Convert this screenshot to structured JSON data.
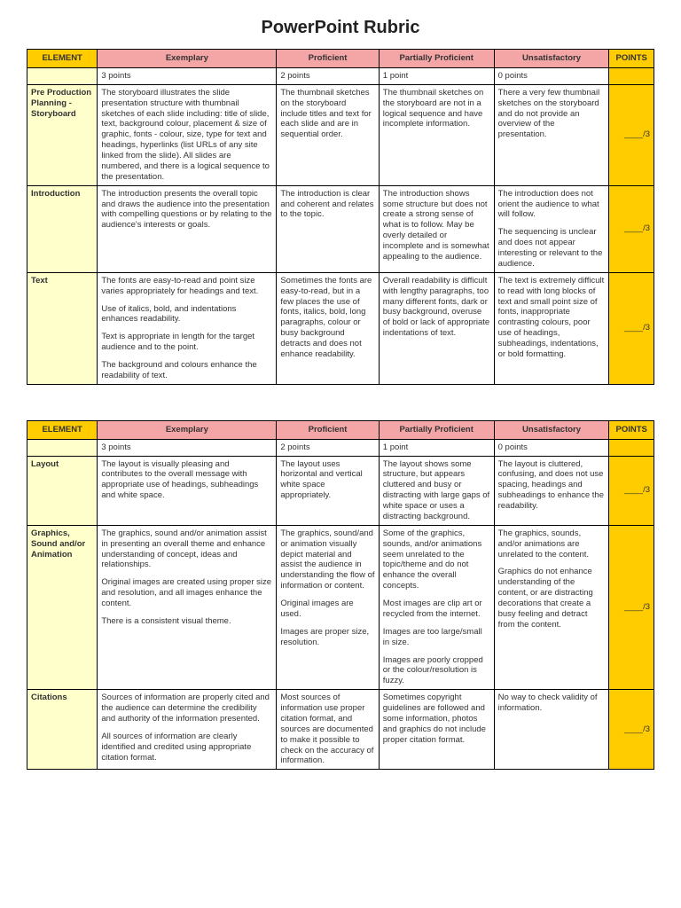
{
  "title": "PowerPoint Rubric",
  "headers": {
    "element": "ELEMENT",
    "exemplary": "Exemplary",
    "proficient": "Proficient",
    "partial": "Partially Proficient",
    "unsat": "Unsatisfactory",
    "points": "POINTS"
  },
  "pointsRow": {
    "p3": "3 points",
    "p2": "2 points",
    "p1": "1 point",
    "p0": "0 points"
  },
  "colors": {
    "headerYellow": "#ffcc00",
    "headerPink": "#f4a6a6",
    "elementBg": "#ffffcc",
    "border": "#000000"
  },
  "table1": [
    {
      "element": "Pre Production Planning - Storyboard",
      "exemplary": [
        "The storyboard illustrates the slide presentation structure with thumbnail sketches of each slide including: title of slide, text, background colour, placement & size of graphic, fonts - colour, size, type for text and headings, hyperlinks (list URLs of any site linked from the slide). All slides are numbered, and there is a logical sequence to the presentation."
      ],
      "proficient": [
        "The thumbnail sketches on the storyboard include titles and text for each slide and are in sequential order."
      ],
      "partial": [
        "The thumbnail sketches on the storyboard are not in a logical sequence and have incomplete information."
      ],
      "unsat": [
        "There a very few thumbnail sketches on the storyboard and do not provide an overview of the presentation."
      ],
      "points": "____/3"
    },
    {
      "element": "Introduction",
      "exemplary": [
        "The introduction presents the overall topic and draws the audience into the presentation with compelling questions or by relating to the audience's interests or goals."
      ],
      "proficient": [
        "The introduction is clear and coherent and relates to the topic."
      ],
      "partial": [
        "The introduction shows some structure but does not create a strong sense of what is to follow. May be overly detailed or incomplete and is somewhat appealing to the audience."
      ],
      "unsat": [
        "The introduction does not orient the audience to what will follow.",
        "The sequencing is unclear and does not appear interesting or relevant to the audience."
      ],
      "points": "____/3"
    },
    {
      "element": "Text",
      "exemplary": [
        "The fonts are easy-to-read and point size varies appropriately for headings and text.",
        "Use of italics, bold, and indentations enhances readability.",
        "Text is appropriate in length for the target audience and to the point.",
        "The background and colours enhance the readability of text."
      ],
      "proficient": [
        "Sometimes the fonts are easy-to-read, but in a few places the use of fonts, italics, bold, long paragraphs, colour or busy background detracts and does not enhance readability."
      ],
      "partial": [
        "Overall readability is difficult with lengthy paragraphs, too many different fonts, dark or busy background, overuse of bold or lack of appropriate indentations of text."
      ],
      "unsat": [
        "The text is extremely difficult to read with long blocks of text and small point size of fonts, inappropriate contrasting colours, poor use of headings, subheadings, indentations, or bold formatting."
      ],
      "points": "____/3"
    }
  ],
  "table2": [
    {
      "element": "Layout",
      "exemplary": [
        "The layout is visually pleasing and contributes to the overall message with appropriate use of headings, subheadings and white space."
      ],
      "proficient": [
        "The layout uses horizontal and vertical white space appropriately."
      ],
      "partial": [
        "The layout shows some structure, but appears cluttered and busy or distracting with large gaps of white space or uses a distracting background."
      ],
      "unsat": [
        "The layout is cluttered, confusing, and does not use spacing, headings and subheadings to enhance the readability."
      ],
      "points": "____/3"
    },
    {
      "element": "Graphics, Sound and/or Animation",
      "exemplary": [
        "The graphics, sound and/or animation assist in presenting an overall theme and enhance understanding of concept, ideas and relationships.",
        "Original images are created using proper size and resolution, and all images enhance the content.",
        "There is a consistent visual theme."
      ],
      "proficient": [
        "The graphics, sound/and or animation visually depict material and assist the audience in understanding the flow of information or content.",
        "Original images are used.",
        "Images are proper size, resolution."
      ],
      "partial": [
        "Some of the graphics, sounds, and/or animations seem unrelated to the topic/theme and do not enhance the overall concepts.",
        "Most images are clip art or recycled from the internet.",
        "Images are too large/small in size.",
        "Images are poorly cropped or the colour/resolution is fuzzy."
      ],
      "unsat": [
        "The graphics, sounds, and/or animations are unrelated to the content.",
        "Graphics do not enhance understanding of the content, or are distracting decorations that create a busy feeling and detract from the content."
      ],
      "points": "____/3"
    },
    {
      "element": "Citations",
      "exemplary": [
        "Sources of information are properly cited and the audience can determine the credibility and authority of the information presented.",
        "All sources of information are clearly identified and credited using appropriate citation format."
      ],
      "proficient": [
        "Most sources of information use proper citation format, and sources are documented to make it possible to check on the accuracy of information."
      ],
      "partial": [
        "Sometimes copyright guidelines are followed and some information, photos and graphics do not include proper citation format."
      ],
      "unsat": [
        "No way to check validity of information."
      ],
      "points": "____/3"
    }
  ]
}
